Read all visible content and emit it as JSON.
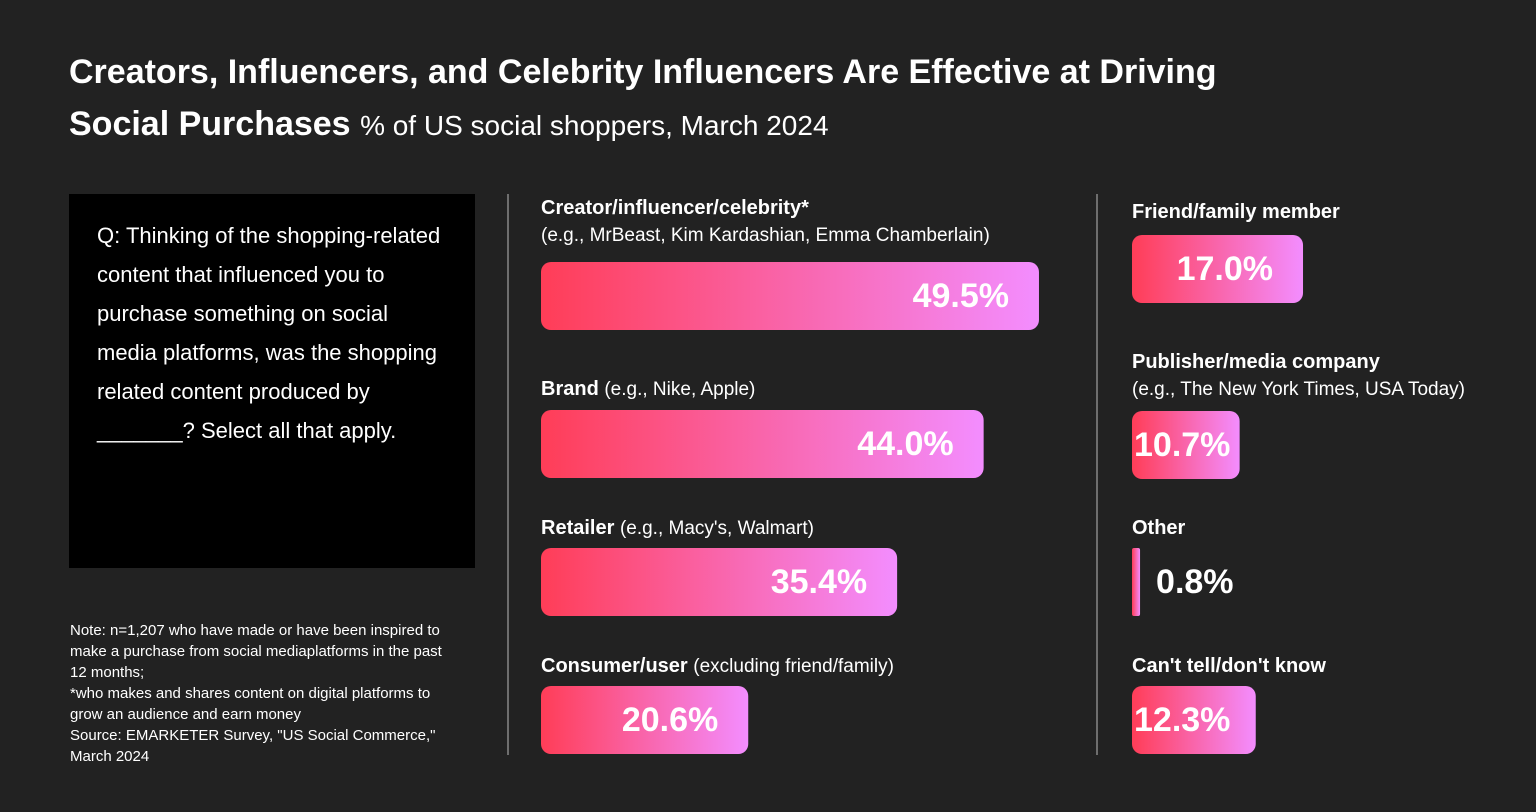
{
  "chart_data": {
    "type": "bar",
    "title": "Creators, Influencers, and Celebrity Influencers Are Effective at Driving Social Purchases",
    "subtitle": "% of US social shoppers, March 2024",
    "categories": [
      "Creator/influencer/celebrity*",
      "Brand",
      "Retailer",
      "Consumer/user",
      "Friend/family member",
      "Publisher/media company",
      "Other",
      "Can't tell/don't know"
    ],
    "category_notes": [
      "(e.g., MrBeast, Kim Kardashian, Emma Chamberlain)",
      "(e.g., Nike, Apple)",
      "(e.g., Macy's, Walmart)",
      "(excluding friend/family)",
      null,
      "(e.g., The New York Times, USA Today)",
      null,
      null
    ],
    "values": [
      49.5,
      44.0,
      35.4,
      20.6,
      17.0,
      10.7,
      0.8,
      12.3
    ],
    "value_labels": [
      "49.5%",
      "44.0%",
      "35.4%",
      "20.6%",
      "17.0%",
      "10.7%",
      "0.8%",
      "12.3%"
    ],
    "bar_gradient": [
      "#ff3d57",
      "#f38dff"
    ]
  },
  "question": "Q: Thinking of the shopping-related content that influenced you to purchase something on social media platforms, was the shopping related content produced by _______? Select all that apply.",
  "note": [
    "Note: n=1,207 who have made or have been inspired to make a purchase from social mediaplatforms in the past 12 months;",
    "*who makes and shares content on digital platforms to grow an audience and earn money",
    "Source: EMARKETER Survey, \"US Social Commerce,\" March 2024"
  ]
}
